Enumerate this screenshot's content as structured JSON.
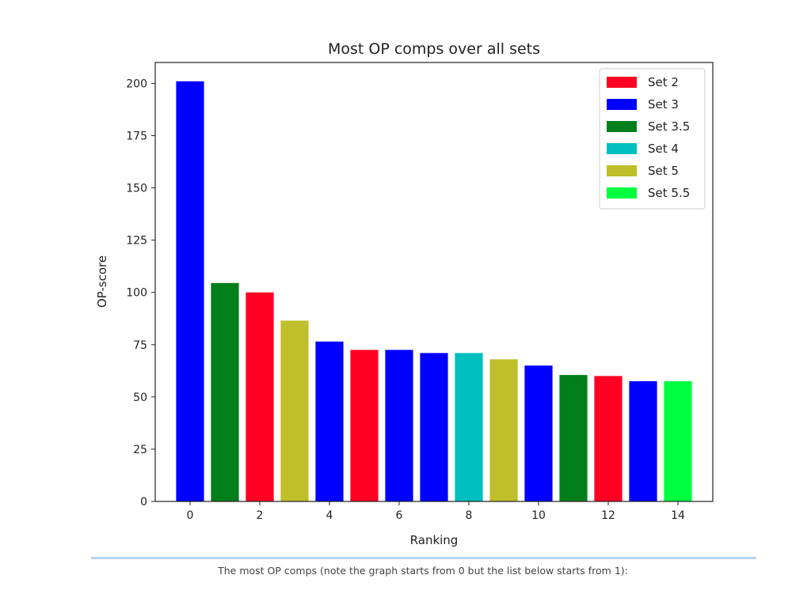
{
  "chart_data": {
    "type": "bar",
    "title": "Most OP comps over all sets",
    "xlabel": "Ranking",
    "ylabel": "OP-score",
    "xlim": [
      -1.0,
      15.0
    ],
    "ylim": [
      0,
      210
    ],
    "xticks": [
      0,
      2,
      4,
      6,
      8,
      10,
      12,
      14
    ],
    "yticks": [
      0,
      25,
      50,
      75,
      100,
      125,
      150,
      175,
      200
    ],
    "legend_position": "top-right",
    "series": [
      {
        "name": "Set 2",
        "color": "#ff0022"
      },
      {
        "name": "Set 3",
        "color": "#0000ff"
      },
      {
        "name": "Set 3.5",
        "color": "#007f1a"
      },
      {
        "name": "Set 4",
        "color": "#00bfbf"
      },
      {
        "name": "Set 5",
        "color": "#bfbf2a"
      },
      {
        "name": "Set 5.5",
        "color": "#00ff3f"
      }
    ],
    "bars": [
      {
        "x": 0,
        "value": 201,
        "set": "Set 3"
      },
      {
        "x": 1,
        "value": 104.5,
        "set": "Set 3.5"
      },
      {
        "x": 2,
        "value": 100,
        "set": "Set 2"
      },
      {
        "x": 3,
        "value": 86.5,
        "set": "Set 5"
      },
      {
        "x": 4,
        "value": 76.5,
        "set": "Set 3"
      },
      {
        "x": 5,
        "value": 72.5,
        "set": "Set 2"
      },
      {
        "x": 6,
        "value": 72.5,
        "set": "Set 3"
      },
      {
        "x": 7,
        "value": 71,
        "set": "Set 3"
      },
      {
        "x": 8,
        "value": 71,
        "set": "Set 4"
      },
      {
        "x": 9,
        "value": 68,
        "set": "Set 5"
      },
      {
        "x": 10,
        "value": 65,
        "set": "Set 3"
      },
      {
        "x": 11,
        "value": 60.5,
        "set": "Set 3.5"
      },
      {
        "x": 12,
        "value": 60,
        "set": "Set 2"
      },
      {
        "x": 13,
        "value": 57.5,
        "set": "Set 3"
      },
      {
        "x": 14,
        "value": 57.5,
        "set": "Set 5.5"
      }
    ]
  },
  "caption": "The most OP comps (note the graph starts from 0 but the list below starts from 1):"
}
